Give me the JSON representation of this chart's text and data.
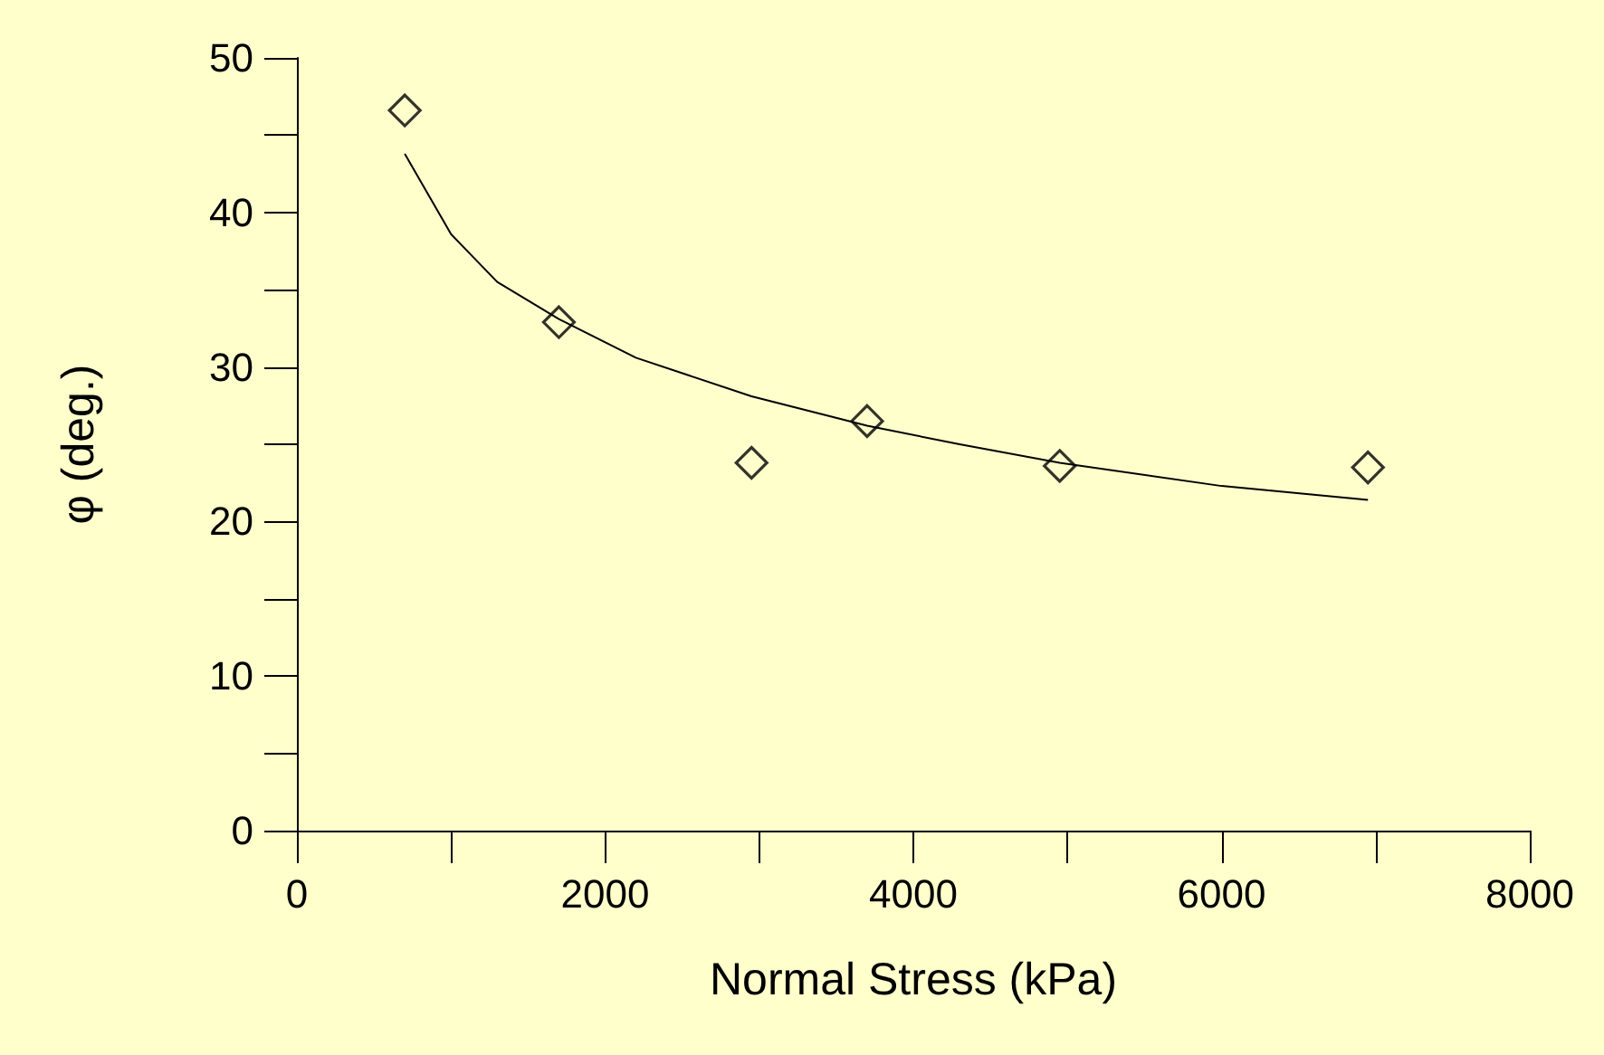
{
  "chart_data": {
    "type": "scatter",
    "xlabel": "Normal Stress (kPa)",
    "ylabel": "φ (deg.)",
    "xlim": [
      0,
      8000
    ],
    "ylim": [
      0,
      50
    ],
    "xticks": [
      0,
      2000,
      4000,
      6000,
      8000
    ],
    "yticks": [
      0,
      10,
      20,
      30,
      40,
      50
    ],
    "grid": false,
    "marker": "diamond",
    "series": [
      {
        "color": "#000000",
        "x": [
          700,
          1700,
          2950,
          3700,
          4950,
          6950
        ],
        "values": [
          46.6,
          32.9,
          23.8,
          26.5,
          23.6,
          23.5
        ]
      },
      {
        "type": "line",
        "color": "#000000",
        "marker": "none",
        "line_style": "solid",
        "x": [
          700,
          1000,
          1300,
          1700,
          2200,
          2950,
          3700,
          4300,
          4950,
          6000,
          6950
        ],
        "values": [
          43.8,
          38.6,
          35.5,
          33.1,
          30.6,
          28.1,
          26.2,
          25.0,
          23.8,
          22.3,
          21.4
        ]
      }
    ]
  }
}
